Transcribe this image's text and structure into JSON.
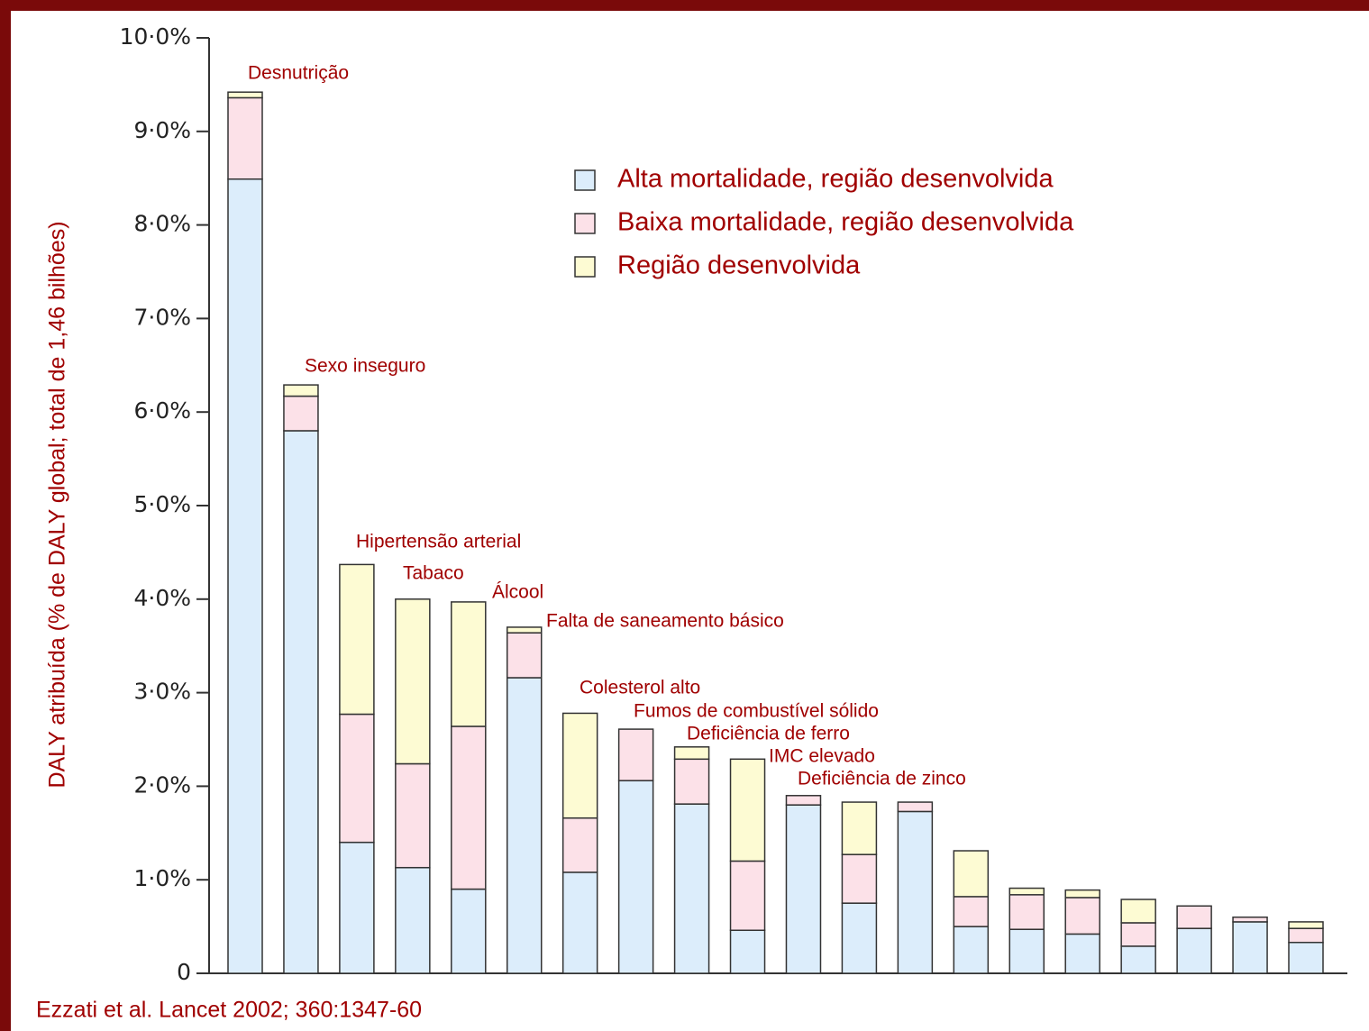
{
  "chart_data": {
    "type": "stacked_bar",
    "y_label": "DALY atribuída (% de DALY global; total de 1,46 bilhões)",
    "source": "Ezzati et al. Lancet 2002; 360:1347-60",
    "categories": [
      "Desnutrição",
      "Sexo inseguro",
      "Hipertensão arterial",
      "Tabaco",
      "Álcool",
      "Falta de saneamento básico",
      "Colesterol alto",
      "Fumos de combustível sólido",
      "Deficiência de ferro",
      "IMC elevado",
      "Deficiência de zinco",
      null,
      null,
      null,
      null,
      null,
      null,
      null,
      null,
      null
    ],
    "series": [
      {
        "name": "Alta mortalidade, região desenvolvida",
        "color": "#dcedfb",
        "values": [
          8.49,
          5.8,
          1.4,
          1.13,
          0.9,
          3.16,
          1.08,
          2.06,
          1.81,
          0.46,
          1.8,
          0.75,
          1.73,
          0.5,
          0.47,
          0.42,
          0.29,
          0.48,
          0.55,
          0.33
        ]
      },
      {
        "name": "Baixa mortalidade, região desenvolvida",
        "color": "#fce1e8",
        "values": [
          0.87,
          0.37,
          1.37,
          1.11,
          1.74,
          0.48,
          0.58,
          0.55,
          0.48,
          0.74,
          0.1,
          0.52,
          0.1,
          0.32,
          0.37,
          0.39,
          0.25,
          0.24,
          0.05,
          0.15
        ]
      },
      {
        "name": "Região desenvolvida",
        "color": "#fdfbd3",
        "values": [
          0.06,
          0.12,
          1.6,
          1.76,
          1.33,
          0.06,
          1.12,
          0,
          0.13,
          1.09,
          0,
          0.56,
          0,
          0.49,
          0.07,
          0.08,
          0.25,
          0,
          0,
          0.07
        ]
      }
    ],
    "ylim": [
      0,
      10
    ],
    "yticks": [
      0,
      {
        "value": 1,
        "label": "1·0%"
      },
      {
        "value": 2,
        "label": "2·0%"
      },
      {
        "value": 3,
        "label": "3·0%"
      },
      {
        "value": 4,
        "label": "4·0%"
      },
      {
        "value": 5,
        "label": "5·0%"
      },
      {
        "value": 6,
        "label": "6·0%"
      },
      {
        "value": 7,
        "label": "7·0%"
      },
      {
        "value": 8,
        "label": "8·0%"
      },
      {
        "value": 9,
        "label": "9·0%"
      },
      {
        "value": 10,
        "label": "10·0%"
      }
    ]
  }
}
